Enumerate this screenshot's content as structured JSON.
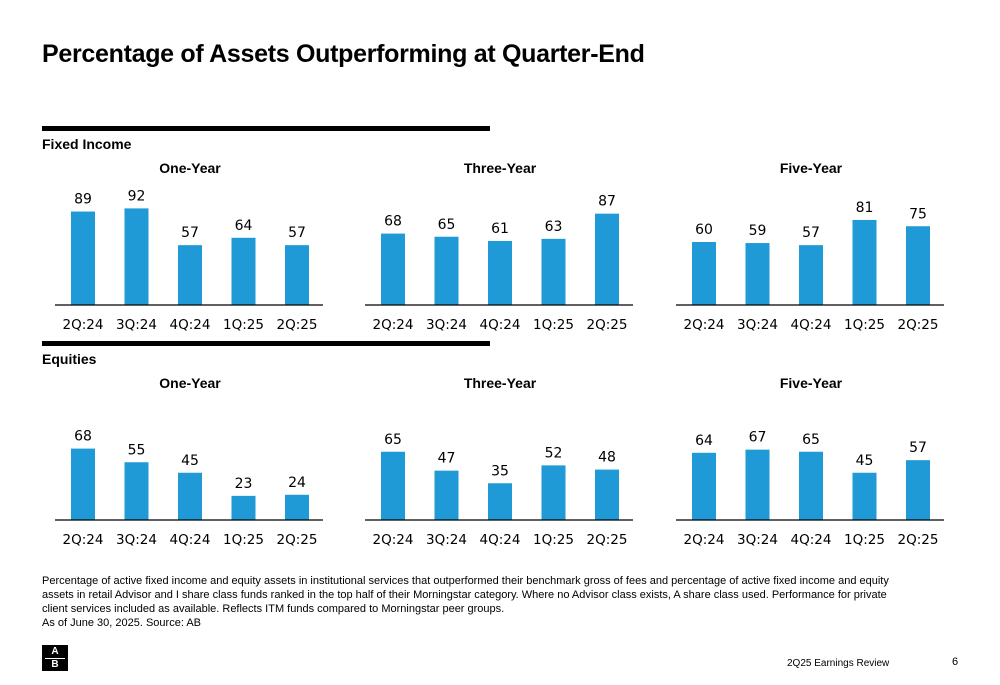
{
  "title": "Percentage of Assets Outperforming at Quarter-End",
  "sections": {
    "fixed_income": "Fixed Income",
    "equities": "Equities"
  },
  "colors": {
    "bar": "#1f9ad6",
    "axis": "#000000"
  },
  "chart_data": [
    {
      "type": "bar",
      "section": "Fixed Income",
      "title": "One-Year",
      "categories": [
        "2Q:24",
        "3Q:24",
        "4Q:24",
        "1Q:25",
        "2Q:25"
      ],
      "values": [
        89,
        92,
        57,
        64,
        57
      ],
      "ylim": [
        0,
        100
      ]
    },
    {
      "type": "bar",
      "section": "Fixed Income",
      "title": "Three-Year",
      "categories": [
        "2Q:24",
        "3Q:24",
        "4Q:24",
        "1Q:25",
        "2Q:25"
      ],
      "values": [
        68,
        65,
        61,
        63,
        87
      ],
      "ylim": [
        0,
        100
      ]
    },
    {
      "type": "bar",
      "section": "Fixed Income",
      "title": "Five-Year",
      "categories": [
        "2Q:24",
        "3Q:24",
        "4Q:24",
        "1Q:25",
        "2Q:25"
      ],
      "values": [
        60,
        59,
        57,
        81,
        75
      ],
      "ylim": [
        0,
        100
      ]
    },
    {
      "type": "bar",
      "section": "Equities",
      "title": "One-Year",
      "categories": [
        "2Q:24",
        "3Q:24",
        "4Q:24",
        "1Q:25",
        "2Q:25"
      ],
      "values": [
        68,
        55,
        45,
        23,
        24
      ],
      "ylim": [
        0,
        100
      ]
    },
    {
      "type": "bar",
      "section": "Equities",
      "title": "Three-Year",
      "categories": [
        "2Q:24",
        "3Q:24",
        "4Q:24",
        "1Q:25",
        "2Q:25"
      ],
      "values": [
        65,
        47,
        35,
        52,
        48
      ],
      "ylim": [
        0,
        100
      ]
    },
    {
      "type": "bar",
      "section": "Equities",
      "title": "Five-Year",
      "categories": [
        "2Q:24",
        "3Q:24",
        "4Q:24",
        "1Q:25",
        "2Q:25"
      ],
      "values": [
        64,
        67,
        65,
        45,
        57
      ],
      "ylim": [
        0,
        100
      ]
    }
  ],
  "footnote": {
    "line1": "Percentage of active fixed income and equity assets in institutional services that outperformed their benchmark gross of fees and percentage of active fixed income and equity",
    "line2": "assets in retail Advisor and I share class funds ranked in the top half of their Morningstar category. Where no Advisor class exists, A share class used. Performance for private",
    "line3": "client services included as available. Reflects ITM funds compared to Morningstar peer groups.",
    "line4": "As of June 30, 2025. Source: AB"
  },
  "logo": {
    "top": "A",
    "bottom": "B"
  },
  "footer": {
    "text": "2Q25 Earnings Review",
    "page": "6"
  }
}
